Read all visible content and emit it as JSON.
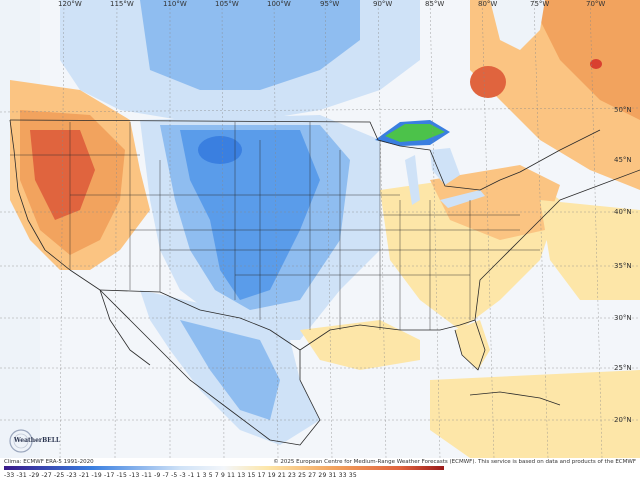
{
  "map": {
    "colors": {
      "ocean": "#eef3f9",
      "neutral": "#f3f6fa",
      "warm_light": "#fde6a8",
      "warm_mid": "#fbc482",
      "warm_strong": "#f2a35e",
      "warm_hot": "#e0643e",
      "cool_light": "#cfe2f7",
      "cool_mid": "#8fbdf0",
      "cool_strong": "#5a9cea",
      "cool_deep": "#3a7fe0",
      "anomaly_green": "#4cc24a",
      "border": "#2a2a2a"
    },
    "longitudes": [
      "120°W",
      "115°W",
      "110°W",
      "105°W",
      "100°W",
      "95°W",
      "90°W",
      "85°W",
      "80°W",
      "75°W",
      "70°W"
    ],
    "latitudes": [
      "50°N",
      "45°N",
      "40°N",
      "35°N",
      "30°N",
      "25°N",
      "20°N"
    ]
  },
  "logo": {
    "text": "WeatherBELL"
  },
  "footer": {
    "credit_left": "Clima: ECMWF ERA-5 1991-2020",
    "credit_right": "© 2025 European Centre for Medium-Range Weather Forecasts (ECMWF). This service is based on data and products of the ECMWF",
    "scale_labels": "-33 -31 -29 -27 -25 -23 -21 -19 -17 -15 -13 -11  -9  -7  -5  -3  -1   1   3   5   7   9  11  13  15  17  19  21  23  25  27  29  31  33  35"
  }
}
